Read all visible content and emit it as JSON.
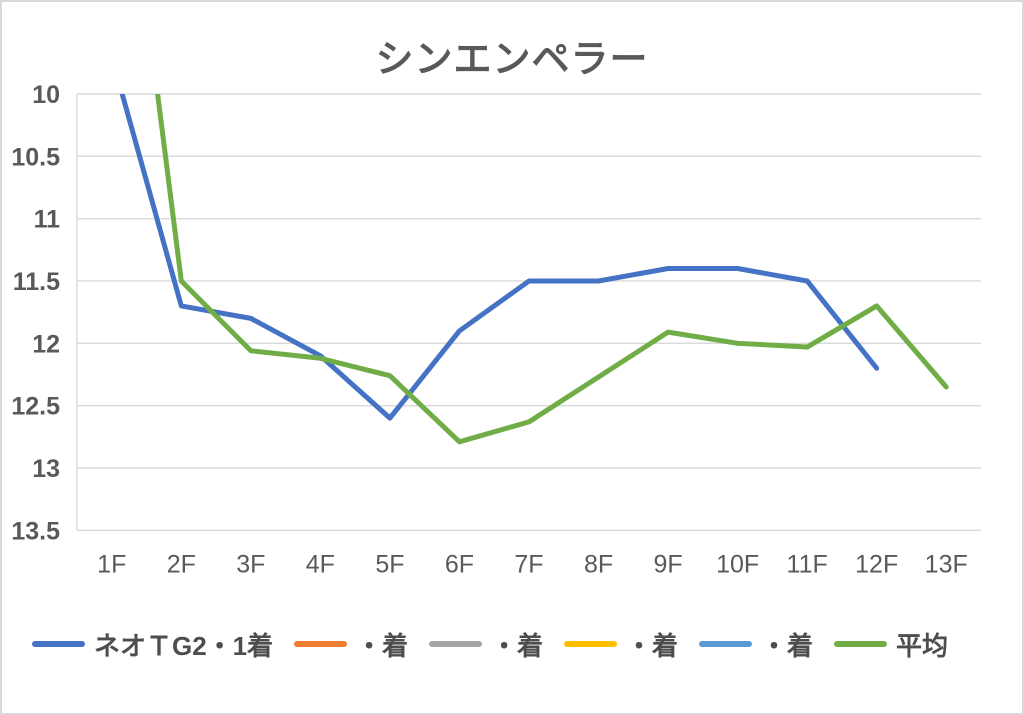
{
  "title": "シンエンペラー",
  "colors": {
    "background": "#FFFFFF",
    "border": "#D9D9D9",
    "gridline": "#D9D9D9",
    "axis_line": "#D9D9D9",
    "axis_text": "#595959",
    "title_text": "#595959",
    "legend_text": "#4d4d4d",
    "series_blue": "#4472C4",
    "series_orange": "#ED7D31",
    "series_gray": "#A5A5A5",
    "series_yellow": "#FFC000",
    "series_lightblue": "#5B9BD5",
    "series_green": "#70AD47"
  },
  "chart_data": {
    "type": "line",
    "title": "シンエンペラー",
    "xlabel": "",
    "ylabel": "",
    "categories": [
      "1F",
      "2F",
      "3F",
      "4F",
      "5F",
      "6F",
      "7F",
      "8F",
      "9F",
      "10F",
      "11F",
      "12F",
      "13F"
    ],
    "y_ticks": [
      10,
      10.5,
      11,
      11.5,
      12,
      12.5,
      13,
      13.5
    ],
    "y_tick_labels": [
      "10",
      "10.5",
      "11",
      "11.5",
      "12",
      "12.5",
      "13",
      "13.5"
    ],
    "ylim": [
      10,
      13.5
    ],
    "y_axis_reversed_smallest_on_top": true,
    "grid": true,
    "legend_position": "bottom",
    "line_width": 5,
    "series": [
      {
        "name": "ネオＴG2・1着",
        "color": "#4472C4",
        "values": [
          9.7,
          11.7,
          11.8,
          12.1,
          12.6,
          11.9,
          11.5,
          11.5,
          11.4,
          11.4,
          11.5,
          12.2,
          null
        ]
      },
      {
        "name": "・着",
        "color": "#ED7D31",
        "values": []
      },
      {
        "name": "・着",
        "color": "#A5A5A5",
        "values": []
      },
      {
        "name": "・着",
        "color": "#FFC000",
        "values": []
      },
      {
        "name": "・着",
        "color": "#5B9BD5",
        "values": []
      },
      {
        "name": "平均",
        "color": "#70AD47",
        "values": [
          7.1,
          11.5,
          12.06,
          12.12,
          12.26,
          12.79,
          12.63,
          12.27,
          11.91,
          12.0,
          12.03,
          11.7,
          12.35
        ]
      }
    ]
  }
}
